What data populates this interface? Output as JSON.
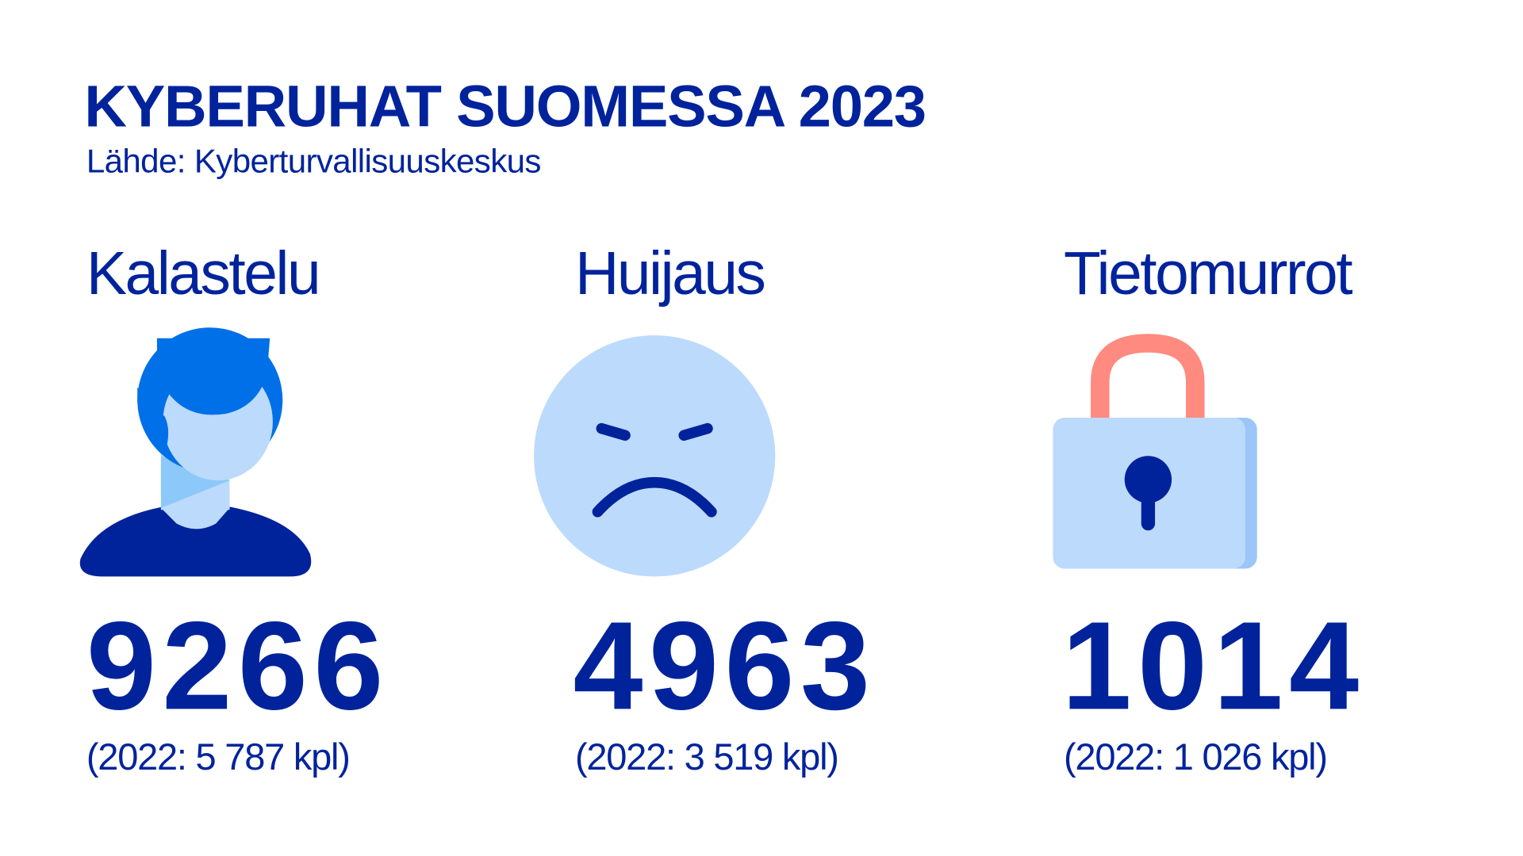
{
  "title": "KYBERUHAT SUOMESSA 2023",
  "subtitle": "Lähde: Kyberturvallisuuskeskus",
  "colors": {
    "dark_blue": "#00239c",
    "light_blue": "#bcdafc",
    "bright_blue": "#0070e8",
    "lock_shackle": "#ff8a80"
  },
  "categories": [
    {
      "label": "Kalastelu",
      "value": "9266",
      "previous": "(2022: 5 787 kpl)",
      "icon": "person-icon"
    },
    {
      "label": "Huijaus",
      "value": "4963",
      "previous": "(2022: 3 519 kpl)",
      "icon": "angry-face-icon"
    },
    {
      "label": "Tietomurrot",
      "value": "1014",
      "previous": "(2022: 1 026 kpl)",
      "icon": "padlock-icon"
    }
  ]
}
